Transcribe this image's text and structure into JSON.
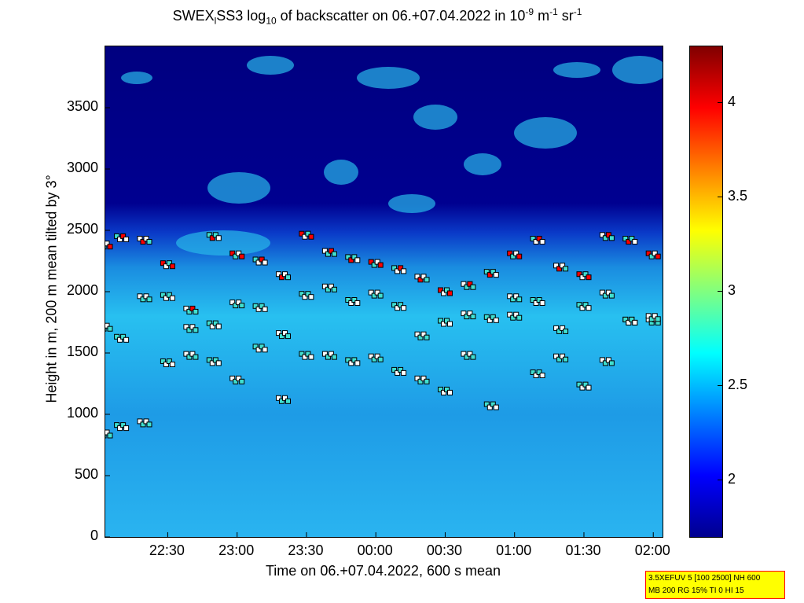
{
  "title": {
    "main": "SWEX",
    "sub1": "l",
    "mid": "SS3 log",
    "sub2": "10",
    "rest": " of backscatter on 06.+07.04.2022 in 10",
    "sup1": "-9",
    "m": " m",
    "sup2": "-1",
    "sr": " sr",
    "sup3": "-1"
  },
  "chart_data": {
    "type": "heatmap",
    "title": "SWEX_lSS3 log10 of backscatter on 06.+07.04.2022 in 10^-9 m^-1 sr^-1",
    "xlabel": "Time on 06.+07.04.2022, 600 s mean",
    "ylabel": "Height in m, 200 m mean tilted by 3°",
    "x_ticks": [
      "22:30",
      "23:00",
      "23:30",
      "00:00",
      "00:30",
      "01:00",
      "01:30",
      "02:00"
    ],
    "y_ticks": [
      "0",
      "500",
      "1000",
      "1500",
      "2000",
      "2500",
      "3000",
      "3500"
    ],
    "ylim": [
      0,
      4000
    ],
    "xlim_minutes_from_2200": [
      3,
      244
    ],
    "colorbar": {
      "ticks": [
        "2",
        "2.5",
        "3",
        "3.5",
        "4"
      ],
      "range": [
        1.7,
        4.3
      ],
      "colormap": "jet"
    },
    "cloud_base_series": [
      {
        "name": "layer-upper",
        "x_min": [
          3,
          10,
          20,
          30,
          40,
          50,
          60,
          70,
          80,
          90,
          100,
          110,
          120,
          130,
          140,
          150,
          160,
          170,
          180,
          190,
          200,
          210,
          220,
          230,
          240
        ],
        "y": [
          2380,
          2440,
          2420,
          2220,
          1850,
          2450,
          2300,
          2250,
          2130,
          2460,
          2320,
          2270,
          2230,
          2180,
          2110,
          2000,
          2050,
          2150,
          2300,
          2420,
          2200,
          2130,
          2450,
          2420,
          2300
        ]
      },
      {
        "name": "layer-middle",
        "x_min": [
          3,
          10,
          20,
          30,
          40,
          50,
          60,
          70,
          80,
          90,
          100,
          110,
          120,
          130,
          140,
          150,
          160,
          170,
          180,
          190,
          200,
          210,
          220,
          230,
          240
        ],
        "y": [
          1710,
          1620,
          1950,
          1960,
          1700,
          1730,
          1900,
          1870,
          1650,
          1970,
          2030,
          1920,
          1980,
          1880,
          1640,
          1750,
          1810,
          1780,
          1950,
          1920,
          1690,
          1880,
          1980,
          1760,
          1760
        ]
      },
      {
        "name": "layer-lower",
        "x_min": [
          3,
          10,
          20,
          30,
          40,
          50,
          60,
          70,
          80,
          90,
          100,
          110,
          120,
          130,
          140,
          150,
          160,
          170,
          180,
          190,
          200,
          210,
          220,
          230,
          240
        ],
        "y": [
          840,
          900,
          930,
          1420,
          1480,
          1430,
          1280,
          1540,
          1120,
          1480,
          1480,
          1430,
          1460,
          1350,
          1280,
          1190,
          1480,
          1070,
          1800,
          1330,
          1460,
          1230,
          1430,
          1760,
          1790
        ]
      }
    ]
  },
  "labels": {
    "xlabel": "Time on 06.+07.04.2022, 600 s mean",
    "ylabel": "Height in m, 200 m mean tilted by 3°"
  },
  "infobox": {
    "line1": "3.5XEFUV 5 [100 2500] NH 600",
    "line2": "MB 200 RG 15% TI 0 HI 15"
  },
  "colors": {
    "background": "#000080",
    "lower_band": "#1ea0e6",
    "mid_band": "#30c8f0"
  }
}
